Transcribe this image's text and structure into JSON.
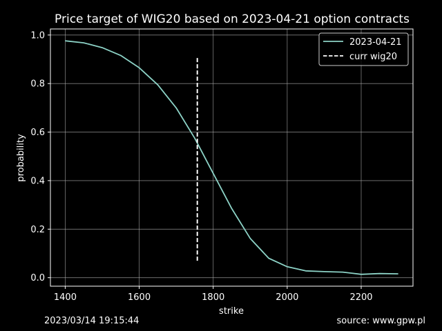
{
  "chart_data": {
    "type": "line",
    "title": "Price target of WIG20 based on 2023-04-21 option contracts",
    "xlabel": "strike",
    "ylabel": "probability",
    "xlim": [
      1360,
      2340
    ],
    "ylim": [
      -0.035,
      1.025
    ],
    "xticks": [
      1400,
      1600,
      1800,
      2000,
      2200
    ],
    "yticks": [
      0.0,
      0.2,
      0.4,
      0.6,
      0.8,
      1.0
    ],
    "grid": true,
    "legend_position": "top-right",
    "series": [
      {
        "name": "2023-04-21",
        "color": "#8dd3c7",
        "style": "solid",
        "x": [
          1400,
          1450,
          1500,
          1550,
          1600,
          1650,
          1700,
          1750,
          1800,
          1850,
          1900,
          1950,
          2000,
          2050,
          2100,
          2150,
          2200,
          2250,
          2300
        ],
        "y": [
          0.976,
          0.968,
          0.948,
          0.916,
          0.865,
          0.795,
          0.7,
          0.575,
          0.43,
          0.285,
          0.162,
          0.08,
          0.045,
          0.028,
          0.025,
          0.023,
          0.014,
          0.017,
          0.016
        ]
      },
      {
        "name": "curr wig20",
        "color": "#ffffff",
        "style": "dashed",
        "x": [
          1757,
          1757
        ],
        "y": [
          0.07,
          0.91
        ]
      }
    ]
  },
  "footer": {
    "timestamp": "2023/03/14 19:15:44",
    "source": "source: www.gpw.pl"
  }
}
